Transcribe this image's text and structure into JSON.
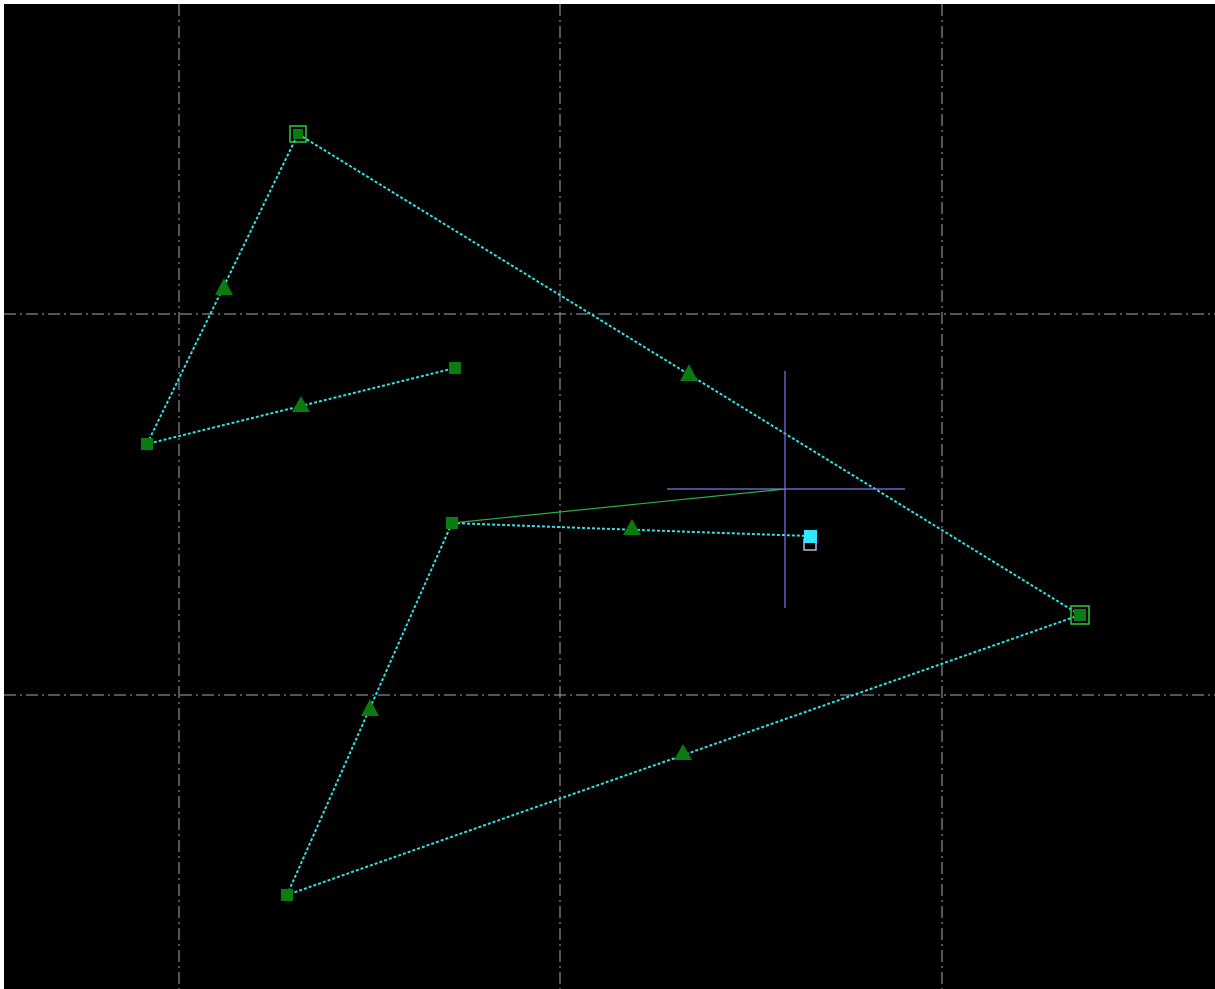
{
  "app": {
    "view": "cad-drawing-viewport"
  },
  "colors": {
    "background": "#000000",
    "grid": "#a8a8a8",
    "polyline": "#33e0e6",
    "rubberband": "#2fae45",
    "vertex": "#0a7d10",
    "vertex_outline": "#2ecc40",
    "midpoint": "#0b7a0f",
    "crosshair": "#7a7ae6",
    "cursor_box": "#33e6ff",
    "cursor_box_shadow": "#b9b9d9"
  },
  "icons": {
    "vertex_grip": "square-grip-icon",
    "midpoint_grip": "triangle-grip-icon",
    "cursor": "crosshair-cursor-icon"
  }
}
